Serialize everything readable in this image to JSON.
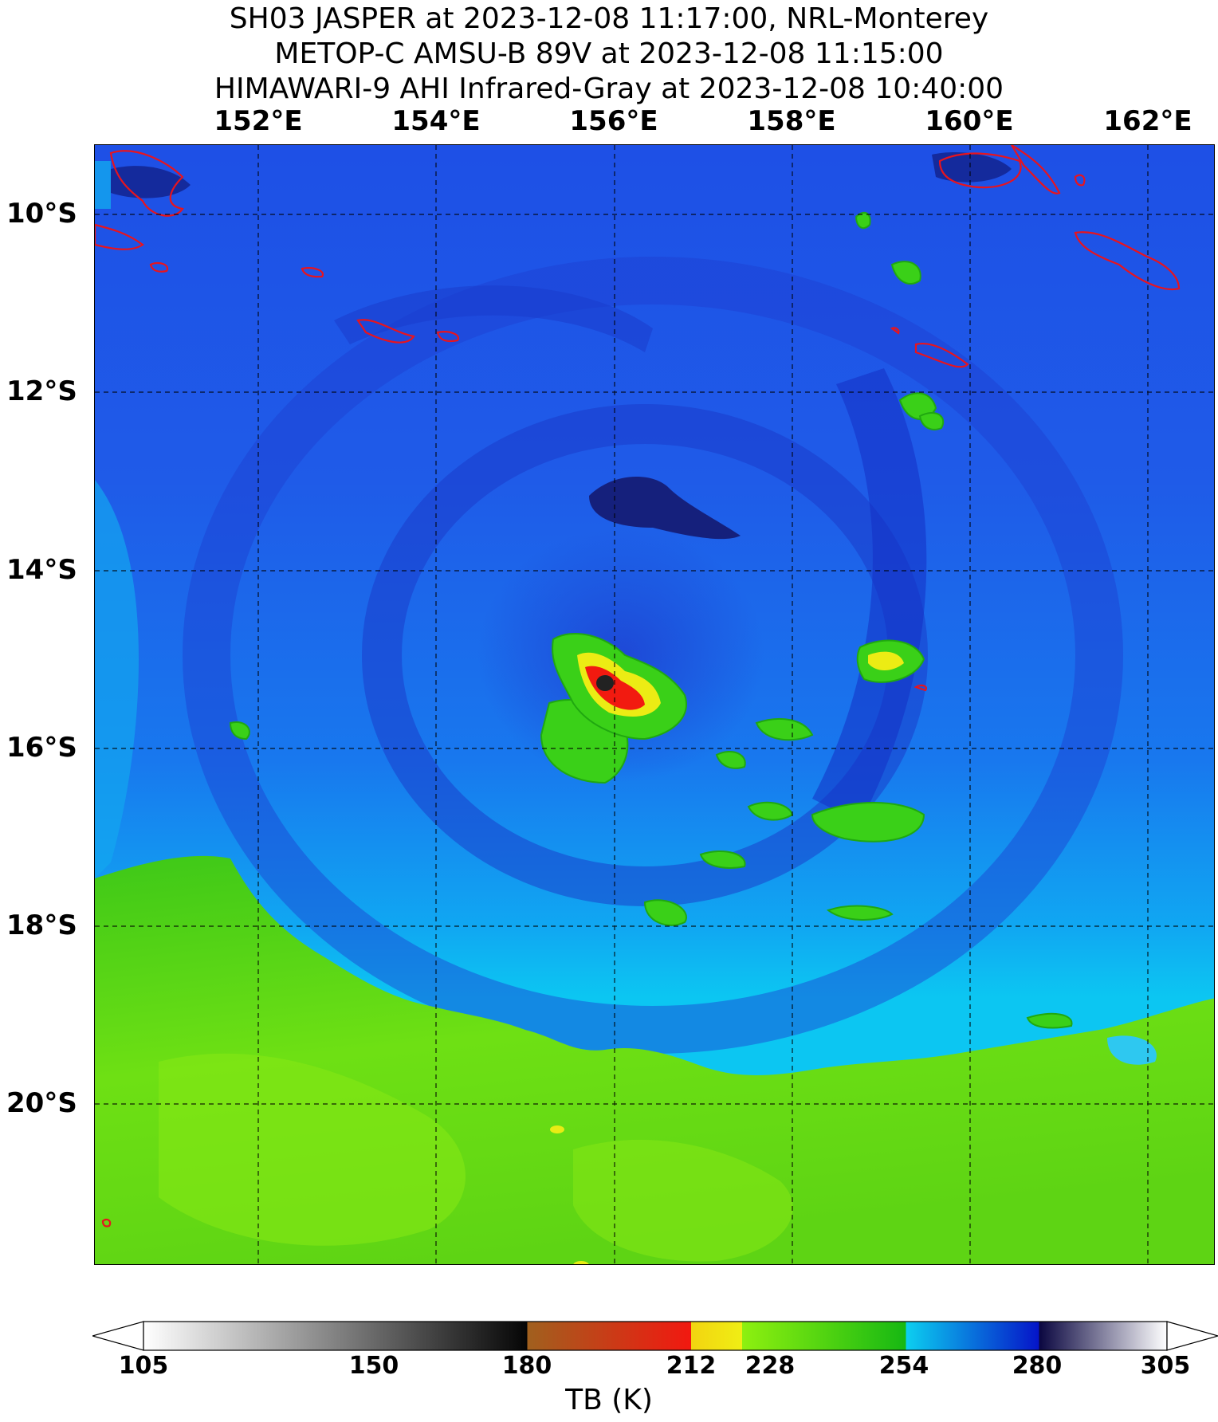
{
  "titles": [
    "SH03 JASPER at 2023-12-08 11:17:00, NRL-Monterey",
    "METOP-C AMSU-B 89V at 2023-12-08 11:15:00",
    "HIMAWARI-9 AHI Infrared-Gray at 2023-12-08 10:40:00"
  ],
  "map": {
    "lon_range": [
      150.17,
      162.75
    ],
    "lat_range": [
      -21.8,
      -9.22
    ],
    "lon_ticks": [
      {
        "value": 152,
        "label": "152°E"
      },
      {
        "value": 154,
        "label": "154°E"
      },
      {
        "value": 156,
        "label": "156°E"
      },
      {
        "value": 158,
        "label": "158°E"
      },
      {
        "value": 160,
        "label": "160°E"
      },
      {
        "value": 162,
        "label": "162°E"
      }
    ],
    "lat_ticks": [
      {
        "value": -10,
        "label": "10°S"
      },
      {
        "value": -12,
        "label": "12°S"
      },
      {
        "value": -14,
        "label": "14°S"
      },
      {
        "value": -16,
        "label": "16°S"
      },
      {
        "value": -18,
        "label": "18°S"
      },
      {
        "value": -20,
        "label": "20°S"
      }
    ],
    "gridlines": "dashed",
    "coastline_color": "#e8141e",
    "storm_center": {
      "lon": 156.4,
      "lat": -15.4
    }
  },
  "colorbar": {
    "title": "TB (K)",
    "range": [
      105,
      305
    ],
    "ticks": [
      105,
      150,
      180,
      212,
      228,
      254,
      280,
      305
    ],
    "stops": [
      {
        "tb": 105,
        "color": "#ffffff"
      },
      {
        "tb": 180,
        "color": "#050505"
      },
      {
        "tb": 180,
        "color": "#a0601e"
      },
      {
        "tb": 212,
        "color": "#f21810"
      },
      {
        "tb": 212,
        "color": "#f2d410"
      },
      {
        "tb": 222,
        "color": "#f0ee14"
      },
      {
        "tb": 222,
        "color": "#8ef010"
      },
      {
        "tb": 254,
        "color": "#16b812"
      },
      {
        "tb": 254,
        "color": "#0ccff0"
      },
      {
        "tb": 280,
        "color": "#0514c8"
      },
      {
        "tb": 280,
        "color": "#0a0640"
      },
      {
        "tb": 305,
        "color": "#ffffff"
      }
    ]
  }
}
